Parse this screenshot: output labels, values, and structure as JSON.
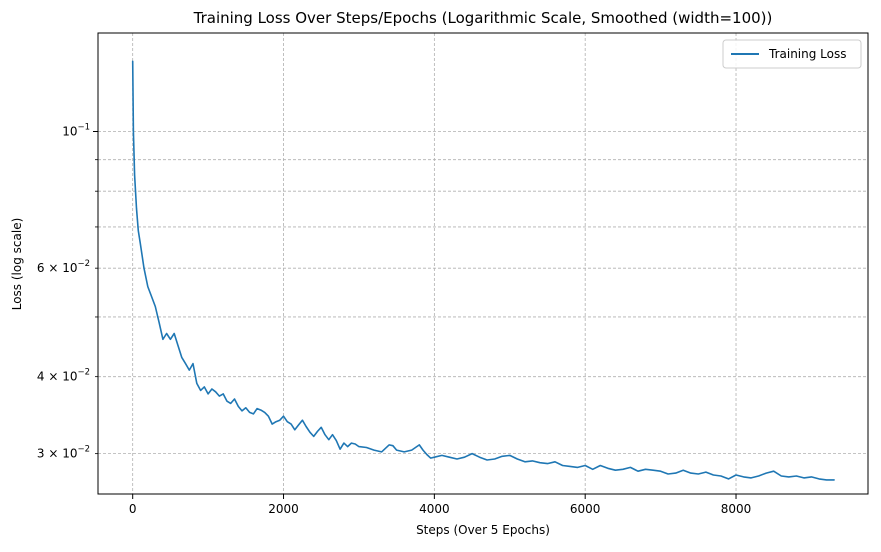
{
  "chart_data": {
    "type": "line",
    "title": "Training Loss Over Steps/Epochs (Logarithmic Scale, Smoothed (width=100))",
    "xlabel": "Steps (Over 5 Epochs)",
    "ylabel": "Loss (log scale)",
    "xscale": "linear",
    "yscale": "log",
    "xlim": [
      -460,
      9750
    ],
    "ylim": [
      0.0258,
      0.1445
    ],
    "x_ticks": [
      {
        "value": 0,
        "label": "0"
      },
      {
        "value": 2000,
        "label": "2000"
      },
      {
        "value": 4000,
        "label": "4000"
      },
      {
        "value": 6000,
        "label": "6000"
      },
      {
        "value": 8000,
        "label": "8000"
      }
    ],
    "y_major_ticks": [
      {
        "value": 0.1,
        "mantissa": "",
        "base": "10",
        "exponent": "−1"
      }
    ],
    "y_minor_ticks": [
      {
        "value": 0.03,
        "mantissa": "3 × ",
        "base": "10",
        "exponent": "−2",
        "labeled": true
      },
      {
        "value": 0.04,
        "mantissa": "4 × ",
        "base": "10",
        "exponent": "−2",
        "labeled": true
      },
      {
        "value": 0.05,
        "labeled": false
      },
      {
        "value": 0.06,
        "mantissa": "6 × ",
        "base": "10",
        "exponent": "−2",
        "labeled": true
      },
      {
        "value": 0.07,
        "labeled": false
      },
      {
        "value": 0.08,
        "labeled": false
      },
      {
        "value": 0.09,
        "labeled": false
      }
    ],
    "grid": true,
    "legend_position": "top-right",
    "series": [
      {
        "name": "Training Loss",
        "color": "#1f77b4",
        "x": [
          0,
          10,
          25,
          50,
          75,
          100,
          150,
          200,
          250,
          300,
          350,
          400,
          450,
          500,
          550,
          600,
          650,
          700,
          750,
          800,
          850,
          900,
          950,
          1000,
          1050,
          1100,
          1150,
          1200,
          1250,
          1300,
          1350,
          1400,
          1450,
          1500,
          1550,
          1600,
          1650,
          1700,
          1750,
          1800,
          1850,
          1900,
          1950,
          2000,
          2050,
          2100,
          2150,
          2200,
          2250,
          2300,
          2350,
          2400,
          2450,
          2500,
          2550,
          2600,
          2650,
          2700,
          2750,
          2800,
          2850,
          2900,
          2950,
          3000,
          3100,
          3200,
          3300,
          3400,
          3450,
          3500,
          3600,
          3700,
          3750,
          3800,
          3850,
          3900,
          3950,
          4000,
          4100,
          4200,
          4300,
          4400,
          4500,
          4600,
          4700,
          4800,
          4900,
          5000,
          5100,
          5200,
          5300,
          5400,
          5500,
          5600,
          5700,
          5800,
          5900,
          6000,
          6100,
          6200,
          6300,
          6400,
          6500,
          6600,
          6700,
          6800,
          6900,
          7000,
          7100,
          7200,
          7300,
          7400,
          7500,
          7600,
          7700,
          7800,
          7900,
          8000,
          8100,
          8200,
          8300,
          8400,
          8500,
          8600,
          8700,
          8800,
          8900,
          9000,
          9100,
          9200,
          9300
        ],
        "y": [
          0.13,
          0.1,
          0.085,
          0.075,
          0.069,
          0.066,
          0.06,
          0.056,
          0.054,
          0.052,
          0.049,
          0.046,
          0.047,
          0.046,
          0.047,
          0.045,
          0.043,
          0.042,
          0.041,
          0.042,
          0.039,
          0.038,
          0.0385,
          0.0375,
          0.0382,
          0.0378,
          0.0372,
          0.0375,
          0.0365,
          0.0362,
          0.0368,
          0.0358,
          0.0352,
          0.0356,
          0.035,
          0.0348,
          0.0355,
          0.0353,
          0.035,
          0.0345,
          0.0335,
          0.0338,
          0.034,
          0.0345,
          0.0338,
          0.0335,
          0.0328,
          0.0334,
          0.034,
          0.0332,
          0.0325,
          0.032,
          0.0326,
          0.0331,
          0.0322,
          0.0316,
          0.0322,
          0.0315,
          0.0305,
          0.0312,
          0.0308,
          0.0312,
          0.0311,
          0.0308,
          0.0307,
          0.0304,
          0.0302,
          0.031,
          0.0309,
          0.0304,
          0.0302,
          0.0304,
          0.0307,
          0.031,
          0.0304,
          0.0299,
          0.0295,
          0.0296,
          0.0298,
          0.0296,
          0.0294,
          0.0296,
          0.03,
          0.0296,
          0.0293,
          0.0294,
          0.0297,
          0.0298,
          0.0294,
          0.0291,
          0.0292,
          0.029,
          0.0289,
          0.0291,
          0.0287,
          0.0286,
          0.0285,
          0.0287,
          0.0283,
          0.0287,
          0.0284,
          0.0282,
          0.0283,
          0.0285,
          0.0281,
          0.0283,
          0.0282,
          0.0281,
          0.0278,
          0.0279,
          0.0282,
          0.0279,
          0.0278,
          0.028,
          0.0277,
          0.0276,
          0.0273,
          0.0277,
          0.0275,
          0.0274,
          0.0276,
          0.0279,
          0.0281,
          0.0276,
          0.0275,
          0.0276,
          0.0274,
          0.0275,
          0.0273,
          0.0272,
          0.0272
        ]
      }
    ]
  }
}
